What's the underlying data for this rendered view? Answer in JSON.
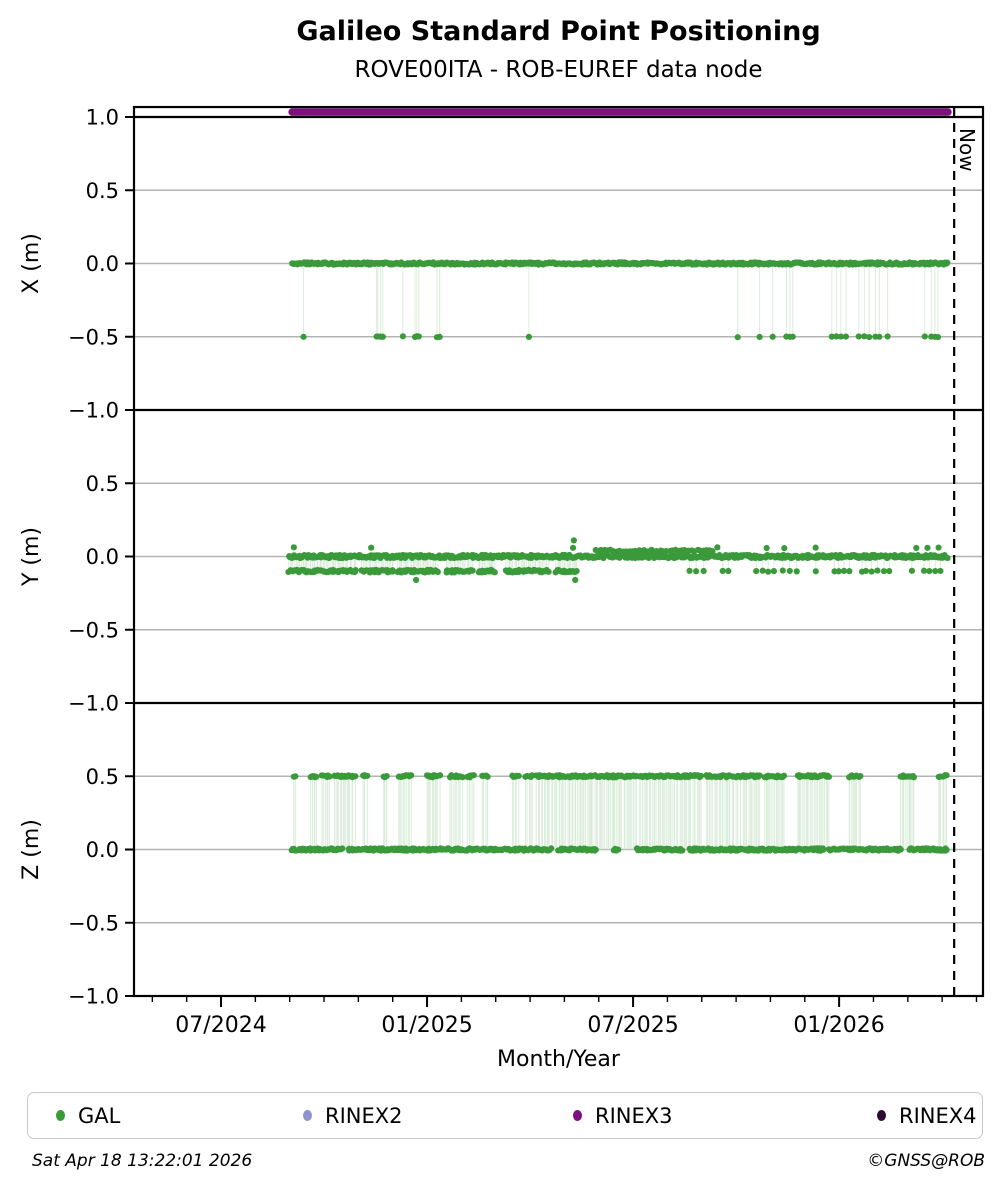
{
  "chart_data": {
    "type": "scatter",
    "title": "Galileo Standard Point Positioning",
    "subtitle": "ROVE00ITA - ROB-EUREF data node",
    "xlabel": "Month/Year",
    "x_unit": "months since 2024-07-01",
    "x_range": [
      -2.534,
      22.19
    ],
    "x_major_ticks": [
      {
        "t": 0,
        "label": "07/2024"
      },
      {
        "t": 6,
        "label": "01/2025"
      },
      {
        "t": 12,
        "label": "07/2025"
      },
      {
        "t": 18,
        "label": "01/2026"
      }
    ],
    "x_minor_tick_step": 1,
    "now": {
      "t": 21.35,
      "label": "Now"
    },
    "colors": {
      "marker": "#3a9a3a",
      "stem": "#d4ead4",
      "grid": "#b3b3b3",
      "frame": "#000000",
      "rinex3": "#7d107d"
    },
    "rinex3_band": {
      "subplot": 0,
      "level": 1.034,
      "t_start": 2.07,
      "t_end": 21.17
    },
    "subplots": [
      {
        "name": "X",
        "ylabel": "X (m)",
        "ylim": [
          -1.0,
          1.068
        ],
        "yticks": [
          1.0,
          0.5,
          0.0,
          -0.5,
          -1.0
        ],
        "solid_line_at": 1.0,
        "series": [
          {
            "name": "gal-x-baseline",
            "level": 0.0,
            "ranges": [
              [
                2.07,
                21.17
              ]
            ],
            "spacing": 0.033,
            "jitter": 1.1
          },
          {
            "name": "gal-x-dips",
            "level": -0.5,
            "stems": true,
            "jitter": 0.5,
            "points": [
              2.42,
              4.51,
              4.58,
              4.65,
              4.72,
              5.3,
              5.65,
              5.72,
              5.77,
              6.29,
              6.35,
              8.97,
              15.06,
              15.7,
              16.05,
              16.46,
              16.56,
              16.66,
              17.8,
              17.92,
              18.05,
              18.21,
              18.58,
              18.72,
              18.88,
              19.05,
              19.19,
              19.43,
              20.48,
              20.68,
              20.78,
              20.88
            ]
          }
        ]
      },
      {
        "name": "Y",
        "ylabel": "Y (m)",
        "ylim": [
          -1.0,
          1.0
        ],
        "yticks": [
          0.5,
          0.0,
          -0.5,
          -1.0
        ],
        "series": [
          {
            "name": "gal-y-baseline",
            "level": 0.0,
            "ranges": [
              [
                1.98,
                21.17
              ]
            ],
            "spacing": 0.033,
            "jitter": 1.6
          },
          {
            "name": "gal-y-low-band",
            "level": -0.1,
            "stems": true,
            "spacing": 0.04,
            "jitter": 1.3,
            "ranges": [
              [
                1.98,
                3.95
              ],
              [
                4.1,
                5.05
              ],
              [
                5.15,
                6.35
              ],
              [
                6.55,
                7.35
              ],
              [
                7.5,
                8.0
              ],
              [
                8.3,
                9.55
              ],
              [
                9.75,
                10.35
              ]
            ]
          },
          {
            "name": "gal-y-low-sparse",
            "level": -0.1,
            "stems": true,
            "jitter": 0.6,
            "points": [
              13.65,
              13.82,
              14.05,
              14.6,
              14.78,
              15.6,
              15.78,
              15.95,
              16.1,
              16.35,
              16.55,
              16.75,
              17.3,
              17.85,
              18.0,
              18.15,
              18.3,
              18.65,
              18.8,
              18.95,
              19.1,
              19.3,
              19.45,
              20.1,
              20.45,
              20.62,
              20.8,
              20.95
            ]
          },
          {
            "name": "gal-y-high-band",
            "level": 0.04,
            "ranges": [
              [
                10.9,
                14.35
              ]
            ],
            "spacing": 0.09,
            "jitter": 1.0
          },
          {
            "name": "gal-y-high-dots",
            "level": 0.06,
            "jitter": 0.5,
            "points": [
              2.1,
              4.36,
              10.25,
              14.45,
              15.9,
              16.4,
              17.3,
              20.25,
              20.55,
              20.9
            ]
          },
          {
            "name": "gal-y-outlier-high",
            "level": 0.11,
            "points": [
              10.28
            ]
          },
          {
            "name": "gal-y-outlier-low",
            "level": -0.16,
            "stems": true,
            "points": [
              5.68,
              10.32
            ]
          }
        ]
      },
      {
        "name": "Z",
        "ylabel": "Z (m)",
        "ylim": [
          -1.0,
          1.0
        ],
        "yticks": [
          0.5,
          0.0,
          -0.5,
          -1.0
        ],
        "series": [
          {
            "name": "gal-z-baseline",
            "level": 0.0,
            "spacing": 0.033,
            "jitter": 1.2,
            "ranges": [
              [
                2.07,
                3.55
              ],
              [
                3.72,
                9.62
              ],
              [
                9.84,
                10.95
              ],
              [
                11.45,
                11.6
              ],
              [
                12.1,
                13.48
              ],
              [
                13.65,
                17.55
              ],
              [
                17.72,
                19.8
              ],
              [
                20.05,
                21.17
              ]
            ]
          },
          {
            "name": "gal-z-high",
            "level": 0.5,
            "stems": true,
            "spacing": 0.042,
            "jitter": 1.1,
            "ranges": [
              [
                2.1,
                2.18
              ],
              [
                2.62,
                2.82
              ],
              [
                2.95,
                3.18
              ],
              [
                3.3,
                3.92
              ],
              [
                4.12,
                4.27
              ],
              [
                4.72,
                4.88
              ],
              [
                5.18,
                5.52
              ],
              [
                5.98,
                6.38
              ],
              [
                6.68,
                7.02
              ],
              [
                7.18,
                7.38
              ],
              [
                7.62,
                7.78
              ],
              [
                8.48,
                8.68
              ],
              [
                8.88,
                9.06
              ],
              [
                9.2,
                12.1
              ],
              [
                12.18,
                14.0
              ],
              [
                14.12,
                14.92
              ],
              [
                15.02,
                15.72
              ],
              [
                15.82,
                16.42
              ],
              [
                16.78,
                17.72
              ],
              [
                18.28,
                18.62
              ],
              [
                19.78,
                20.22
              ],
              [
                20.88,
                21.17
              ]
            ]
          }
        ]
      }
    ],
    "legend": {
      "items": [
        {
          "label": "GAL",
          "color": "#3a9a3a"
        },
        {
          "label": "RINEX2",
          "color": "#9093ce"
        },
        {
          "label": "RINEX3",
          "color": "#7d107d"
        },
        {
          "label": "RINEX4",
          "color": "#2e0b33"
        }
      ]
    }
  },
  "footer": {
    "timestamp": "Sat Apr 18 13:22:01 2026",
    "copyright": "©GNSS@ROB"
  }
}
